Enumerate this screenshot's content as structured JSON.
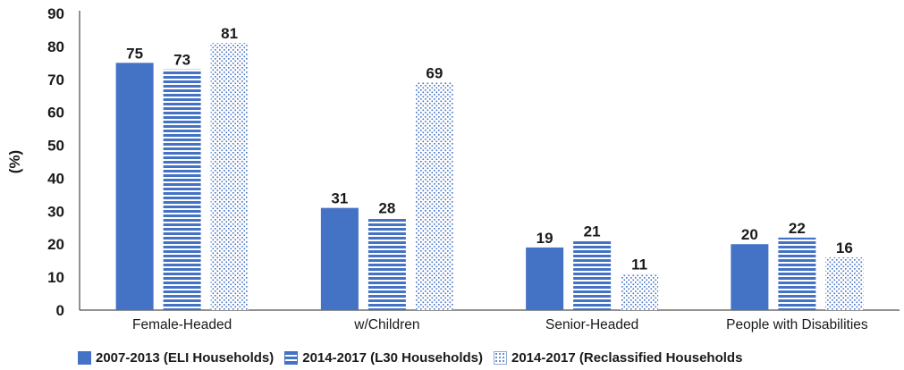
{
  "chart_data": {
    "type": "bar",
    "categories": [
      "Female-Headed",
      "w/Children",
      "Senior-Headed",
      "People with Disabilities"
    ],
    "series": [
      {
        "name": "2007-2013 (ELI Households)",
        "values": [
          75,
          31,
          19,
          20
        ],
        "color": "#4472c4",
        "pattern": "solid"
      },
      {
        "name": "2014-2017 (L30 Households)",
        "values": [
          73,
          28,
          21,
          22
        ],
        "color": "#4472c4",
        "pattern": "horizontal-stripes"
      },
      {
        "name": "2014-2017 (Reclassified Households",
        "values": [
          81,
          69,
          11,
          16
        ],
        "color": "#4472c4",
        "pattern": "dots"
      }
    ],
    "ylabel": "(%)",
    "xlabel": "",
    "ylim": [
      0,
      90
    ],
    "yticks": [
      0,
      10,
      20,
      30,
      40,
      50,
      60,
      70,
      80,
      90
    ],
    "grid": false,
    "legend_position": "bottom",
    "data_labels": true
  }
}
